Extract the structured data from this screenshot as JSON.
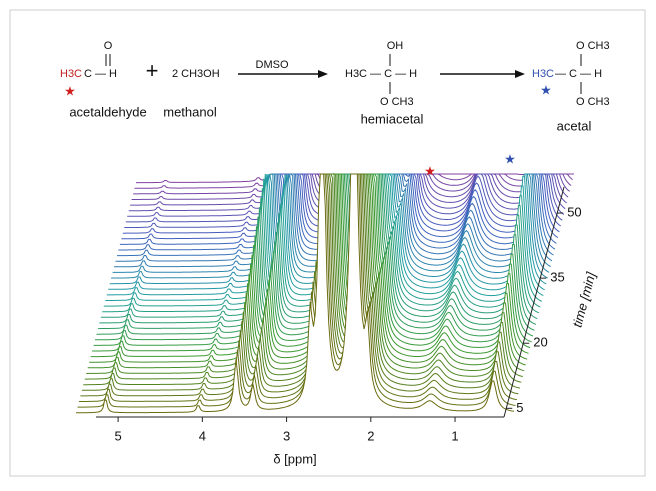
{
  "chart_data": {
    "type": "waterfall",
    "scheme": {
      "reactant1": {
        "formula_left": "H3C",
        "formula_right": "C — H",
        "top": "O",
        "label": "acetaldehyde"
      },
      "plus": "+",
      "reactant2": {
        "formula": "2 CH3OH",
        "label": "methanol"
      },
      "condition": "DMSO",
      "intermediate": {
        "formula": "H3C — C — H",
        "top": "OH",
        "bottom": "O CH3",
        "label": "hemiacetal"
      },
      "product": {
        "formula_left": "H3C",
        "formula_right": "— C — H",
        "top": "O CH3",
        "bottom": "O CH3",
        "label": "acetal"
      },
      "star": "★"
    },
    "xlabel": "δ [ppm]",
    "xlim": [
      5.5,
      0.3
    ],
    "xticks": [
      5,
      4,
      3,
      2,
      1
    ],
    "zlabel": "time [min]",
    "zlim": [
      3,
      56
    ],
    "zticks": [
      5,
      20,
      35,
      50
    ],
    "ylim": [
      0,
      100
    ],
    "trace_count": 42,
    "peaks": [
      {
        "ppm": 5.15,
        "width": 0.02,
        "start": 12,
        "end": 2
      },
      {
        "ppm": 4.05,
        "width": 0.02,
        "start": 6,
        "end": 3
      },
      {
        "ppm": 3.6,
        "width": 0.03,
        "start": 40,
        "end": 160
      },
      {
        "ppm": 3.4,
        "width": 0.03,
        "start": 20,
        "end": 140
      },
      {
        "ppm": 2.72,
        "width": 0.03,
        "start": 60,
        "end": 200
      },
      {
        "ppm": 2.58,
        "width": 0.04,
        "start": 300,
        "end": 300
      },
      {
        "ppm": 2.2,
        "width": 0.05,
        "start": 300,
        "end": 300
      },
      {
        "ppm": 2.04,
        "width": 0.03,
        "start": 50,
        "end": 20
      },
      {
        "ppm": 1.3,
        "width": 0.1,
        "start": 8,
        "end": 45
      },
      {
        "ppm": 0.55,
        "width": 0.05,
        "start": 25,
        "end": 160
      }
    ],
    "colors": [
      "#6b6b10",
      "#3a9a30",
      "#20a0a0",
      "#4060c0",
      "#8040a0"
    ],
    "star_colors": {
      "acetaldehyde": "#d02020",
      "acetal": "#3050b0"
    }
  }
}
